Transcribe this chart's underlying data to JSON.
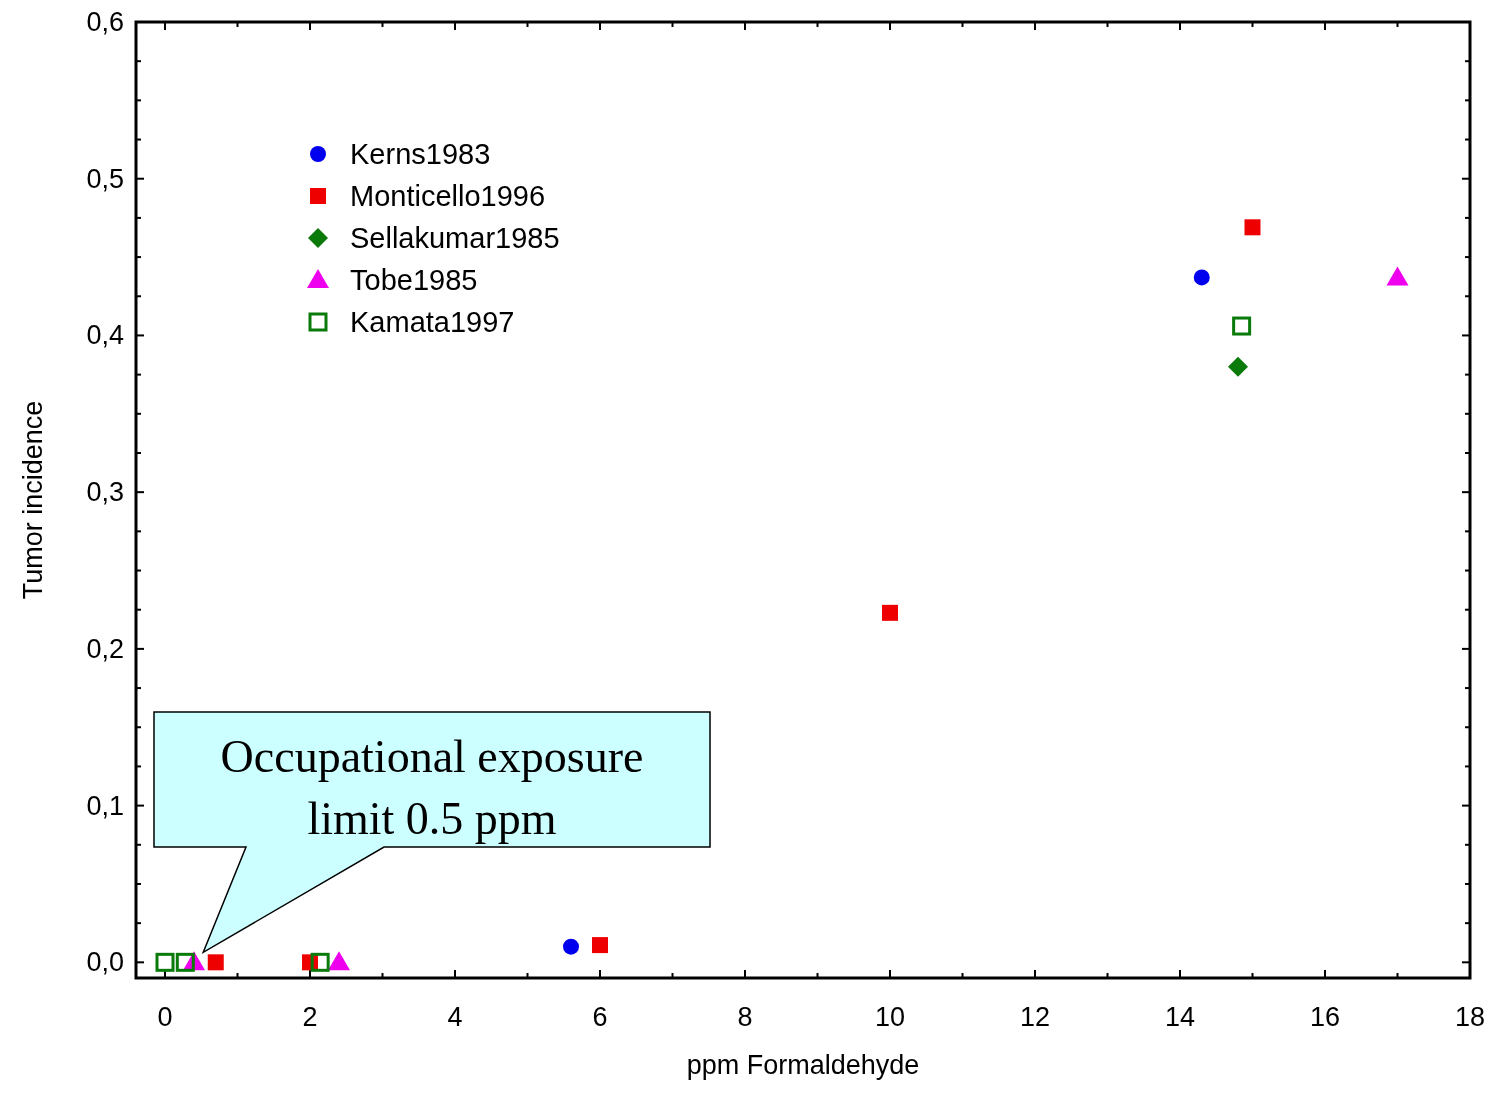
{
  "chart_data": {
    "type": "scatter",
    "xlabel": "ppm Formaldehyde",
    "ylabel": "Tumor incidence",
    "xlim": [
      -0.4,
      18
    ],
    "ylim": [
      -0.01,
      0.6
    ],
    "xticks": [
      0,
      {
        "value": 1,
        "label": null
      },
      2,
      {
        "value": 3,
        "label": null
      },
      4,
      {
        "value": 5,
        "label": null
      },
      6,
      {
        "value": 7,
        "label": null
      },
      8,
      {
        "value": 9,
        "label": null
      },
      10,
      {
        "value": 11,
        "label": null
      },
      12,
      {
        "value": 13,
        "label": null
      },
      14,
      {
        "value": 15,
        "label": null
      },
      16,
      {
        "value": 17,
        "label": null
      },
      18
    ],
    "yticks": [
      {
        "value": 0,
        "label": "0,0"
      },
      {
        "value": 0.025,
        "label": null
      },
      {
        "value": 0.05,
        "label": null
      },
      {
        "value": 0.075,
        "label": null
      },
      {
        "value": 0.1,
        "label": "0,1"
      },
      {
        "value": 0.125,
        "label": null
      },
      {
        "value": 0.15,
        "label": null
      },
      {
        "value": 0.175,
        "label": null
      },
      {
        "value": 0.2,
        "label": "0,2"
      },
      {
        "value": 0.225,
        "label": null
      },
      {
        "value": 0.25,
        "label": null
      },
      {
        "value": 0.275,
        "label": null
      },
      {
        "value": 0.3,
        "label": "0,3"
      },
      {
        "value": 0.325,
        "label": null
      },
      {
        "value": 0.35,
        "label": null
      },
      {
        "value": 0.375,
        "label": null
      },
      {
        "value": 0.4,
        "label": "0,4"
      },
      {
        "value": 0.425,
        "label": null
      },
      {
        "value": 0.45,
        "label": null
      },
      {
        "value": 0.475,
        "label": null
      },
      {
        "value": 0.5,
        "label": "0,5"
      },
      {
        "value": 0.525,
        "label": null
      },
      {
        "value": 0.55,
        "label": null
      },
      {
        "value": 0.575,
        "label": null
      },
      {
        "value": 0.6,
        "label": "0,6"
      }
    ],
    "grid": false,
    "legend": "top left",
    "series": [
      {
        "name": "Kerns1983",
        "color": "#0000ee",
        "marker": "circle",
        "x": [
          5.6,
          14.3
        ],
        "values": [
          0.01,
          0.437
        ]
      },
      {
        "name": "Monticello1996",
        "color": "#ee0000",
        "marker": "square",
        "x": [
          0.7,
          2.0,
          6.0,
          10.0,
          15.0
        ],
        "values": [
          0,
          0,
          0.011,
          0.223,
          0.469
        ]
      },
      {
        "name": "Sellakumar1985",
        "color": "#0a7a0a",
        "marker": "diamond",
        "x": [
          14.8
        ],
        "values": [
          0.38
        ]
      },
      {
        "name": "Tobe1985",
        "color": "#ee00ee",
        "marker": "triangle",
        "x": [
          0.4,
          2.4,
          17.0
        ],
        "values": [
          0,
          0,
          0.437
        ]
      },
      {
        "name": "Kamata1997",
        "color": "#0a7a0a",
        "marker": "square",
        "x": [
          0,
          0.28,
          2.14,
          14.85
        ],
        "values": [
          0,
          0,
          0,
          0.406
        ]
      }
    ],
    "annotations": [
      {
        "text": "Occupational exposure limit 0.5 ppm",
        "x": 0.5,
        "y": 0
      }
    ]
  }
}
